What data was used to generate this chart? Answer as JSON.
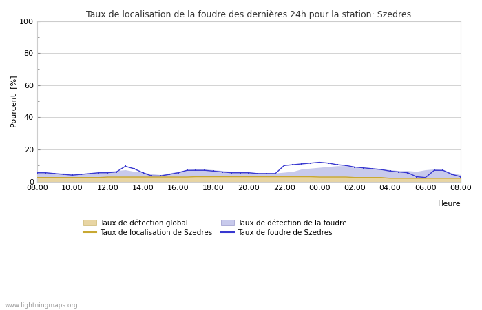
{
  "title": "Taux de localisation de la foudre des dernières 24h pour la station: Szedres",
  "xlabel": "Heure",
  "ylabel": "Pourcent  [%]",
  "xlim": [
    0,
    48
  ],
  "ylim": [
    0,
    100
  ],
  "yticks": [
    0,
    20,
    40,
    60,
    80,
    100
  ],
  "yticks_minor": [
    10,
    30,
    50,
    70,
    90
  ],
  "xtick_labels": [
    "08:00",
    "10:00",
    "12:00",
    "14:00",
    "16:00",
    "18:00",
    "20:00",
    "22:00",
    "00:00",
    "02:00",
    "04:00",
    "06:00",
    "08:00"
  ],
  "xtick_positions": [
    0,
    4,
    8,
    12,
    16,
    20,
    24,
    28,
    32,
    36,
    40,
    44,
    48
  ],
  "color_fill_global": "#e8d5a3",
  "color_fill_foudre": "#c8caec",
  "color_line_localisation": "#c8a832",
  "color_line_foudre": "#3838d0",
  "bg_color": "#ffffff",
  "grid_color": "#cccccc",
  "watermark": "www.lightningmaps.org",
  "legend": [
    {
      "label": "Taux de détection global",
      "type": "fill",
      "color": "#e8d5a3"
    },
    {
      "label": "Taux de localisation de Szedres",
      "type": "line",
      "color": "#c8a832"
    },
    {
      "label": "Taux de détection de la foudre",
      "type": "fill",
      "color": "#c8caec"
    },
    {
      "label": "Taux de foudre de Szedres",
      "type": "line",
      "color": "#3838d0"
    }
  ],
  "x": [
    0,
    1,
    2,
    3,
    4,
    5,
    6,
    7,
    8,
    9,
    10,
    11,
    12,
    13,
    14,
    15,
    16,
    17,
    18,
    19,
    20,
    21,
    22,
    23,
    24,
    25,
    26,
    27,
    28,
    29,
    30,
    31,
    32,
    33,
    34,
    35,
    36,
    37,
    38,
    39,
    40,
    41,
    42,
    43,
    44,
    45,
    46,
    47,
    48
  ],
  "global_detection": [
    2.5,
    2.5,
    2.5,
    2.5,
    2.5,
    2.5,
    2.5,
    2.5,
    2.8,
    2.8,
    2.8,
    2.8,
    2.8,
    2.8,
    2.8,
    2.8,
    2.8,
    2.8,
    3.0,
    3.0,
    3.0,
    3.0,
    3.0,
    3.0,
    3.0,
    3.0,
    3.0,
    3.0,
    3.0,
    3.0,
    3.0,
    3.0,
    2.8,
    2.8,
    2.8,
    2.8,
    2.5,
    2.5,
    2.5,
    2.5,
    2.0,
    2.0,
    2.0,
    2.0,
    2.0,
    2.0,
    2.0,
    2.0,
    2.0
  ],
  "foudre_detection": [
    5.5,
    5.5,
    5.0,
    5.0,
    4.5,
    4.5,
    5.0,
    5.5,
    6.0,
    6.5,
    7.0,
    6.0,
    5.5,
    4.5,
    4.0,
    5.0,
    6.0,
    7.0,
    7.5,
    7.5,
    7.0,
    6.5,
    6.0,
    6.0,
    5.5,
    5.0,
    5.0,
    5.0,
    5.5,
    6.0,
    7.5,
    8.0,
    8.5,
    9.0,
    9.5,
    9.5,
    8.5,
    8.0,
    8.0,
    7.5,
    7.0,
    6.5,
    6.5,
    6.0,
    7.0,
    7.5,
    7.0,
    5.0,
    4.0
  ],
  "localisation_szedres": [
    2.5,
    2.5,
    2.5,
    2.5,
    2.5,
    2.5,
    2.5,
    2.5,
    2.8,
    2.8,
    2.8,
    2.8,
    2.8,
    2.8,
    2.8,
    2.8,
    2.8,
    2.8,
    3.0,
    3.0,
    3.0,
    3.0,
    3.0,
    3.0,
    3.0,
    3.0,
    3.0,
    3.0,
    3.0,
    3.0,
    3.0,
    3.0,
    2.8,
    2.8,
    2.8,
    2.8,
    2.5,
    2.5,
    2.5,
    2.5,
    2.0,
    2.0,
    2.0,
    2.0,
    2.0,
    2.0,
    2.0,
    2.0,
    2.0
  ],
  "foudre_szedres": [
    5.5,
    5.5,
    5.0,
    4.5,
    4.0,
    4.5,
    5.0,
    5.5,
    5.5,
    6.0,
    9.5,
    8.0,
    5.5,
    3.5,
    3.5,
    4.5,
    5.5,
    7.0,
    7.0,
    7.0,
    6.5,
    6.0,
    5.5,
    5.5,
    5.5,
    5.0,
    5.0,
    5.0,
    10.0,
    10.5,
    11.0,
    11.5,
    12.0,
    11.5,
    10.5,
    10.0,
    9.0,
    8.5,
    8.0,
    7.5,
    6.5,
    6.0,
    5.5,
    3.0,
    2.5,
    7.0,
    7.0,
    4.5,
    3.0
  ]
}
